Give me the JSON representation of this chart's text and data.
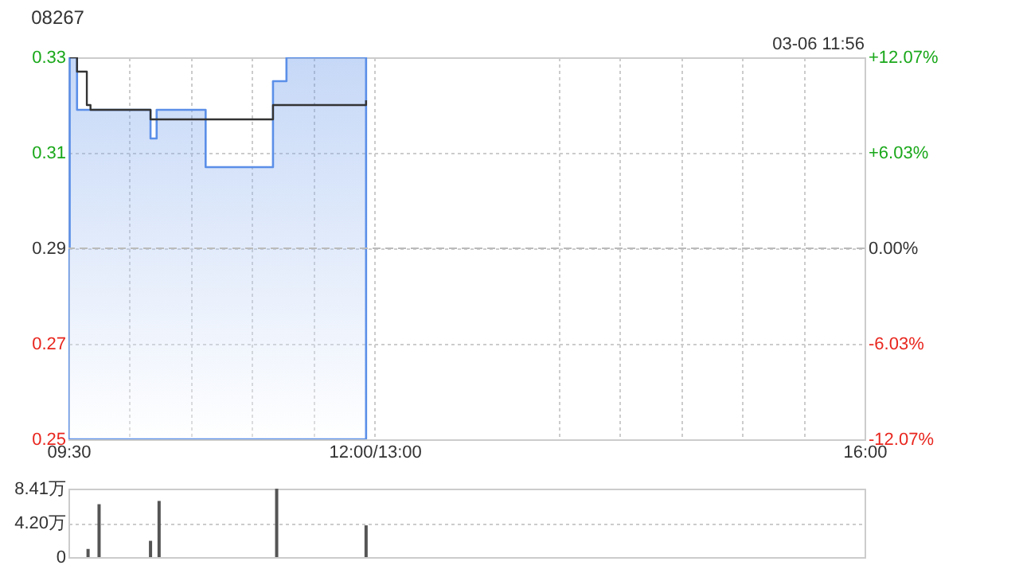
{
  "chart_data": [
    {
      "type": "step",
      "title": "08267",
      "annotations": [
        "03-06 11:56"
      ],
      "xlim": [
        9.5,
        16
      ],
      "xticks": [
        {
          "value": 9.5,
          "label": "09:30"
        },
        {
          "value": 10,
          "label": null
        },
        {
          "value": 10.5,
          "label": null
        },
        {
          "value": 11,
          "label": null
        },
        {
          "value": 11.5,
          "label": null
        },
        {
          "value": 12,
          "label": "12:00/13:00"
        },
        {
          "value": 13.5,
          "label": null
        },
        {
          "value": 14,
          "label": null
        },
        {
          "value": 14.5,
          "label": null
        },
        {
          "value": 15,
          "label": null
        },
        {
          "value": 15.5,
          "label": null
        },
        {
          "value": 16,
          "label": "16:00"
        }
      ],
      "ylim": [
        0.25,
        0.33
      ],
      "yticks": [
        0.25,
        0.27,
        0.29,
        0.31,
        0.33
      ],
      "y2lim": [
        -12.07,
        12.07
      ],
      "y2ticks": [
        {
          "value": -12.07,
          "label": "-12.07%"
        },
        {
          "value": -6.03,
          "label": "-6.03%"
        },
        {
          "value": 0,
          "label": "0.00%"
        },
        {
          "value": 6.03,
          "label": "+6.03%"
        },
        {
          "value": 12.07,
          "label": "+12.07%"
        }
      ],
      "series": [
        {
          "type": "area",
          "color": "#5b8fe8",
          "x": [
            9.5,
            9.51,
            9.57,
            10.17,
            10.22,
            10.62,
            11.17,
            11.28,
            11.93
          ],
          "values": [
            0.29,
            0.33,
            0.319,
            0.313,
            0.319,
            0.307,
            0.325,
            0.33,
            0.33
          ]
        },
        {
          "type": "step",
          "color": "#333333",
          "x": [
            9.51,
            9.57,
            9.65,
            9.68,
            10.17,
            11.17,
            11.93
          ],
          "values": [
            0.33,
            0.327,
            0.32,
            0.319,
            0.317,
            0.32,
            0.321
          ]
        }
      ],
      "ref_lines": [
        {
          "axis": "y",
          "value": 0.29,
          "line_style": "dashed"
        }
      ],
      "grid": true
    },
    {
      "type": "bar",
      "color": "#555555",
      "xlim": [
        9.5,
        16
      ],
      "x": [
        9.66,
        9.75,
        10.17,
        10.24,
        11.2,
        11.93
      ],
      "values": [
        1.0,
        6.5,
        2.0,
        6.9,
        8.4,
        3.9
      ],
      "ylim": [
        0,
        8.41
      ],
      "yticks": [
        0,
        {
          "value": 4.2,
          "label": "4.20万"
        },
        {
          "value": 8.41,
          "label": "8.41万"
        }
      ],
      "grid": "y",
      "tick_labels": "y"
    }
  ]
}
